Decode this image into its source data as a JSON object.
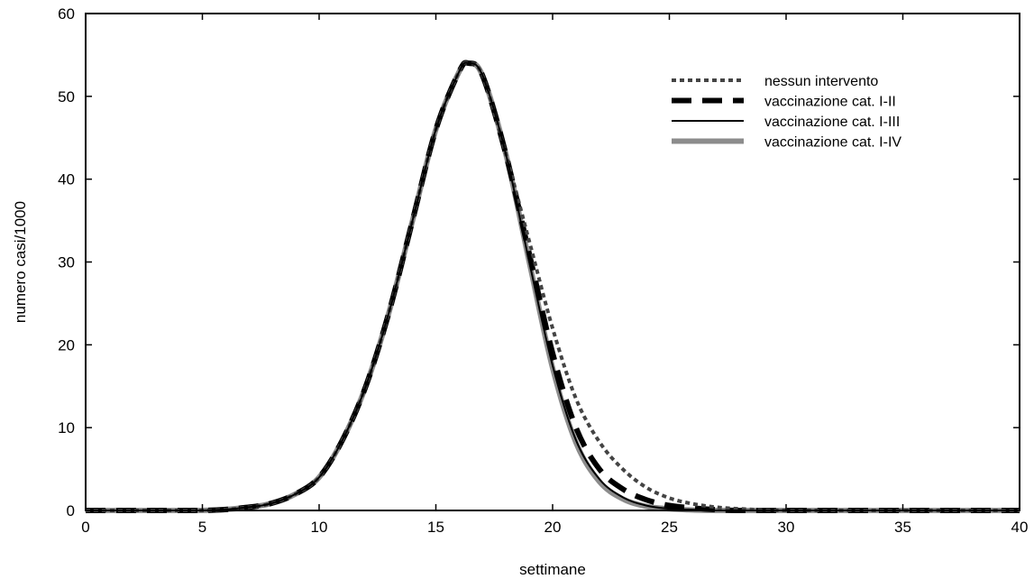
{
  "chart_data": {
    "type": "line",
    "title": "",
    "xlabel": "settimane",
    "ylabel": "numero casi/1000",
    "xlim": [
      0,
      40
    ],
    "ylim": [
      0,
      60
    ],
    "xticks": [
      0,
      5,
      10,
      15,
      20,
      25,
      30,
      35,
      40
    ],
    "yticks": [
      0,
      10,
      20,
      30,
      40,
      50,
      60
    ],
    "grid": false,
    "legend_position": "top-right",
    "series": [
      {
        "name": "nessun intervento",
        "style": "dotted",
        "color": "#444444",
        "x": [
          0,
          5,
          7,
          8,
          9,
          10,
          11,
          12,
          13,
          14,
          15,
          16,
          16.4,
          17,
          18,
          19,
          20,
          21,
          22,
          23,
          24,
          25,
          26,
          27,
          28,
          30,
          35,
          40
        ],
        "y": [
          0,
          0,
          0.4,
          0.9,
          2,
          4,
          8.5,
          15,
          24,
          35,
          46,
          53,
          54,
          52.5,
          43,
          32.5,
          22,
          13.5,
          8.3,
          5,
          2.8,
          1.5,
          0.8,
          0.4,
          0.2,
          0,
          0,
          0
        ]
      },
      {
        "name": "vaccinazione cat. I-II",
        "style": "dashed",
        "color": "#000000",
        "x": [
          0,
          5,
          7,
          8,
          9,
          10,
          11,
          12,
          13,
          14,
          15,
          16,
          16.4,
          17,
          18,
          19,
          20,
          21,
          22,
          23,
          24,
          25,
          26,
          27,
          28,
          30,
          35,
          40
        ],
        "y": [
          0,
          0,
          0.4,
          0.9,
          2,
          4,
          8.5,
          15,
          24,
          35,
          46,
          53,
          54,
          52.5,
          43,
          31,
          19,
          10,
          5,
          2.6,
          1.3,
          0.6,
          0.3,
          0.1,
          0,
          0,
          0,
          0
        ]
      },
      {
        "name": "vaccinazione cat. I-III",
        "style": "solid",
        "color": "#000000",
        "x": [
          0,
          5,
          7,
          8,
          9,
          10,
          11,
          12,
          13,
          14,
          15,
          16,
          16.4,
          17,
          18,
          19,
          20,
          21,
          22,
          23,
          24,
          25,
          26,
          27,
          28,
          30,
          35,
          40
        ],
        "y": [
          0,
          0,
          0.4,
          0.9,
          2,
          4,
          8.5,
          15,
          24,
          35,
          46,
          53,
          54,
          52.5,
          43,
          30,
          17.5,
          8.5,
          3.8,
          1.6,
          0.6,
          0.2,
          0.1,
          0,
          0,
          0,
          0,
          0
        ]
      },
      {
        "name": "vaccinazione cat. I-IV",
        "style": "solid-thick",
        "color": "#8c8c8c",
        "x": [
          0,
          5,
          7,
          8,
          9,
          10,
          11,
          12,
          13,
          14,
          15,
          16,
          16.4,
          17,
          18,
          19,
          20,
          21,
          22,
          23,
          24,
          25,
          26,
          27,
          28,
          30,
          35,
          40
        ],
        "y": [
          0,
          0,
          0.4,
          0.9,
          2,
          4,
          8.5,
          15,
          24,
          35,
          46,
          53,
          54,
          52.5,
          43,
          30,
          17.2,
          8.2,
          3.5,
          1.4,
          0.5,
          0.2,
          0.05,
          0,
          0,
          0,
          0,
          0
        ]
      }
    ]
  }
}
